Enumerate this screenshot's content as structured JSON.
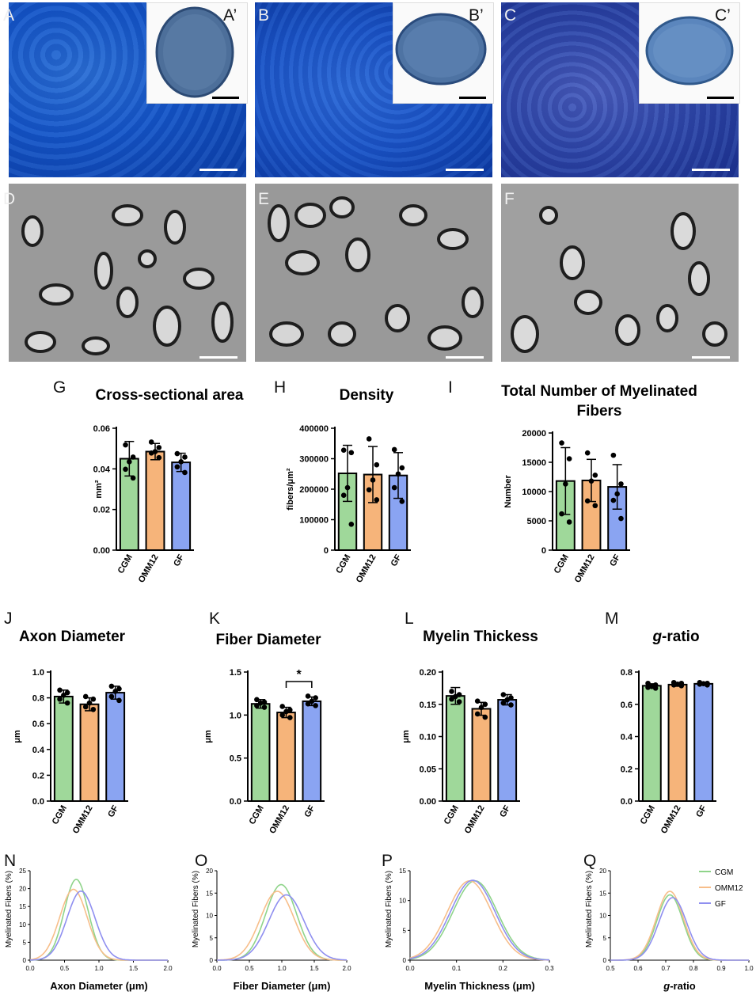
{
  "panels": {
    "A": "A",
    "A_prime": "A’",
    "B": "B",
    "B_prime": "B’",
    "C": "C",
    "C_prime": "C’",
    "D": "D",
    "E": "E",
    "F": "F",
    "G": "G",
    "H": "H",
    "I": "I",
    "J": "J",
    "K": "K",
    "L": "L",
    "M": "M",
    "N": "N",
    "O": "O",
    "P": "P",
    "Q": "Q"
  },
  "colors": {
    "CGM": "#9fd89a",
    "OMM12": "#f6b47a",
    "GF": "#8aa4f2",
    "CGM_line": "#8fd48a",
    "OMM12_line": "#f7be8a",
    "GF_line": "#8f8ff0"
  },
  "chart_data": [
    {
      "id": "G",
      "type": "bar",
      "title": "Cross-sectional area",
      "ylabel": "mm²",
      "categories": [
        "CGM",
        "OMM12",
        "GF"
      ],
      "values": [
        0.045,
        0.0485,
        0.0432
      ],
      "errors": [
        0.0085,
        0.004,
        0.0045
      ],
      "ylim": [
        0,
        0.06
      ],
      "yticks": [
        0.0,
        0.02,
        0.04,
        0.06
      ],
      "ytick_labels": [
        "0.00",
        "0.02",
        "0.04",
        "0.06"
      ],
      "points": [
        [
          0.0518,
          0.0458,
          0.0435,
          0.0398,
          0.0355
        ],
        [
          0.0532,
          0.0505,
          0.0485,
          0.0478,
          0.0455
        ],
        [
          0.0475,
          0.0458,
          0.0435,
          0.041,
          0.0382
        ]
      ]
    },
    {
      "id": "H",
      "type": "bar",
      "title": "Density",
      "ylabel": "fibers/μm²",
      "categories": [
        "CGM",
        "OMM12",
        "GF"
      ],
      "values": [
        252000,
        248000,
        245000
      ],
      "errors": [
        92000,
        92000,
        75000
      ],
      "ylim": [
        0,
        400000
      ],
      "yticks": [
        0,
        100000,
        200000,
        300000,
        400000
      ],
      "ytick_labels": [
        "0",
        "100000",
        "200000",
        "300000",
        "400000"
      ],
      "points": [
        [
          328000,
          320000,
          205000,
          180000,
          85000
        ],
        [
          365000,
          280000,
          230000,
          198000,
          165000
        ],
        [
          330000,
          270000,
          250000,
          205000,
          160000
        ]
      ]
    },
    {
      "id": "I",
      "type": "bar",
      "title": "Total Number of Myelinated Fibers",
      "ylabel": "Number",
      "categories": [
        "CGM",
        "OMM12",
        "GF"
      ],
      "values": [
        11800,
        11900,
        10800
      ],
      "errors": [
        5700,
        3600,
        3800
      ],
      "ylim": [
        0,
        20000
      ],
      "yticks": [
        0,
        5000,
        10000,
        15000,
        20000
      ],
      "ytick_labels": [
        "0",
        "5000",
        "10000",
        "15000",
        "20000"
      ],
      "points": [
        [
          18300,
          15600,
          11300,
          6200,
          4800
        ],
        [
          16600,
          12800,
          11800,
          8400,
          7600
        ],
        [
          16200,
          11300,
          9600,
          8500,
          5400
        ]
      ]
    },
    {
      "id": "J",
      "type": "bar",
      "title": "Axon Diameter",
      "ylabel": "μm",
      "categories": [
        "CGM",
        "OMM12",
        "GF"
      ],
      "values": [
        0.81,
        0.75,
        0.84
      ],
      "errors": [
        0.05,
        0.05,
        0.05
      ],
      "ylim": [
        0,
        1.0
      ],
      "yticks": [
        0,
        0.2,
        0.4,
        0.6,
        0.8,
        1.0
      ],
      "ytick_labels": [
        "0.0",
        "0.2",
        "0.4",
        "0.6",
        "0.8",
        "1.0"
      ],
      "points": [
        [
          0.86,
          0.84,
          0.82,
          0.79,
          0.76
        ],
        [
          0.81,
          0.79,
          0.76,
          0.73,
          0.71
        ],
        [
          0.89,
          0.87,
          0.85,
          0.81,
          0.78
        ]
      ]
    },
    {
      "id": "K",
      "type": "bar",
      "title": "Fiber Diameter",
      "ylabel": "μm",
      "categories": [
        "CGM",
        "OMM12",
        "GF"
      ],
      "values": [
        1.13,
        1.03,
        1.16
      ],
      "errors": [
        0.05,
        0.06,
        0.05
      ],
      "ylim": [
        0,
        1.5
      ],
      "yticks": [
        0,
        0.5,
        1.0,
        1.5
      ],
      "ytick_labels": [
        "0.0",
        "0.5",
        "1.0",
        "1.5"
      ],
      "points": [
        [
          1.18,
          1.15,
          1.14,
          1.11,
          1.09
        ],
        [
          1.1,
          1.06,
          1.04,
          1.0,
          0.97
        ],
        [
          1.22,
          1.2,
          1.16,
          1.13,
          1.11
        ]
      ],
      "significance": {
        "between": [
          1,
          2
        ],
        "label": "*"
      }
    },
    {
      "id": "L",
      "type": "bar",
      "title": "Myelin Thickess",
      "ylabel": "μm",
      "categories": [
        "CGM",
        "OMM12",
        "GF"
      ],
      "values": [
        0.163,
        0.143,
        0.157
      ],
      "errors": [
        0.013,
        0.01,
        0.008
      ],
      "ylim": [
        0,
        0.2
      ],
      "yticks": [
        0,
        0.05,
        0.1,
        0.15,
        0.2
      ],
      "ytick_labels": [
        "0.00",
        "0.05",
        "0.10",
        "0.15",
        "0.20"
      ],
      "points": [
        [
          0.17,
          0.165,
          0.162,
          0.158,
          0.154
        ],
        [
          0.155,
          0.15,
          0.145,
          0.135,
          0.13
        ],
        [
          0.165,
          0.16,
          0.157,
          0.152,
          0.149
        ]
      ]
    },
    {
      "id": "M",
      "type": "bar",
      "title": "g-ratio",
      "title_italic": "g",
      "title_rest": "-ratio",
      "ylabel": "",
      "categories": [
        "CGM",
        "OMM12",
        "GF"
      ],
      "values": [
        0.715,
        0.722,
        0.727
      ],
      "errors": [
        0.012,
        0.01,
        0.008
      ],
      "ylim": [
        0,
        0.8
      ],
      "yticks": [
        0,
        0.2,
        0.4,
        0.6,
        0.8
      ],
      "ytick_labels": [
        "0.0",
        "0.2",
        "0.4",
        "0.6",
        "0.8"
      ],
      "points": [
        [
          0.73,
          0.72,
          0.71,
          0.705,
          0.7
        ],
        [
          0.735,
          0.73,
          0.725,
          0.72,
          0.715
        ],
        [
          0.735,
          0.73,
          0.728,
          0.725,
          0.72
        ]
      ]
    },
    {
      "id": "N",
      "type": "line",
      "xlabel": "Axon Diameter (μm)",
      "ylabel": "Myelinated Fibers (%)",
      "xlim": [
        0,
        2
      ],
      "ylim": [
        0,
        25
      ],
      "xticks": [
        0,
        0.5,
        1,
        1.5,
        2
      ],
      "xtick_labels": [
        "0.0",
        "0.5",
        "1.0",
        "1.5",
        "2.0"
      ],
      "yticks": [
        0,
        5,
        10,
        15,
        20,
        25
      ],
      "ytick_labels": [
        "0",
        "5",
        "10",
        "15",
        "20",
        "25"
      ],
      "series": [
        {
          "name": "CGM",
          "mean": 0.67,
          "sd": 0.175,
          "peak": 22.6
        },
        {
          "name": "OMM12",
          "mean": 0.63,
          "sd": 0.2,
          "peak": 19.8
        },
        {
          "name": "GF",
          "mean": 0.74,
          "sd": 0.205,
          "peak": 19.3
        }
      ]
    },
    {
      "id": "O",
      "type": "line",
      "xlabel": "Fiber Diameter (μm)",
      "ylabel": "Myelinated Fibers (%)",
      "xlim": [
        0,
        2
      ],
      "ylim": [
        0,
        20
      ],
      "xticks": [
        0,
        0.5,
        1,
        1.5,
        2
      ],
      "xtick_labels": [
        "0.0",
        "0.5",
        "1.0",
        "1.5",
        "2.0"
      ],
      "yticks": [
        0,
        5,
        10,
        15,
        20
      ],
      "ytick_labels": [
        "0",
        "5",
        "10",
        "15",
        "20"
      ],
      "series": [
        {
          "name": "CGM",
          "mean": 0.99,
          "sd": 0.24,
          "peak": 16.9
        },
        {
          "name": "OMM12",
          "mean": 0.93,
          "sd": 0.26,
          "peak": 15.4
        },
        {
          "name": "GF",
          "mean": 1.07,
          "sd": 0.27,
          "peak": 14.6
        }
      ]
    },
    {
      "id": "P",
      "type": "line",
      "xlabel": "Myelin Thickness (μm)",
      "ylabel": "Myelinated Fibers (%)",
      "xlim": [
        0,
        0.3
      ],
      "ylim": [
        0,
        15
      ],
      "xticks": [
        0,
        0.1,
        0.2,
        0.3
      ],
      "xtick_labels": [
        "0.0",
        "0.1",
        "0.2",
        "0.3"
      ],
      "yticks": [
        0,
        5,
        10,
        15
      ],
      "ytick_labels": [
        "0",
        "5",
        "10",
        "15"
      ],
      "series": [
        {
          "name": "CGM",
          "mean": 0.14,
          "sd": 0.048,
          "peak": 13.3
        },
        {
          "name": "OMM12",
          "mean": 0.128,
          "sd": 0.048,
          "peak": 13.3
        },
        {
          "name": "GF",
          "mean": 0.135,
          "sd": 0.048,
          "peak": 13.4
        }
      ]
    },
    {
      "id": "Q",
      "type": "line",
      "xlabel": "g-ratio",
      "xlabel_italic": "g",
      "xlabel_rest": "-ratio",
      "ylabel": "Myelinated Fibers (%)",
      "xlim": [
        0.5,
        1.0
      ],
      "ylim": [
        0,
        20
      ],
      "xticks": [
        0.5,
        0.6,
        0.7,
        0.8,
        0.9,
        1.0
      ],
      "xtick_labels": [
        "0.5",
        "0.6",
        "0.7",
        "0.8",
        "0.9",
        "1.0"
      ],
      "yticks": [
        0,
        5,
        10,
        15,
        20
      ],
      "ytick_labels": [
        "0",
        "5",
        "10",
        "15",
        "20"
      ],
      "legend": "top-right",
      "series": [
        {
          "name": "CGM",
          "mean": 0.715,
          "sd": 0.047,
          "peak": 14.6
        },
        {
          "name": "OMM12",
          "mean": 0.715,
          "sd": 0.049,
          "peak": 15.4
        },
        {
          "name": "GF",
          "mean": 0.725,
          "sd": 0.05,
          "peak": 14.0
        }
      ]
    }
  ]
}
